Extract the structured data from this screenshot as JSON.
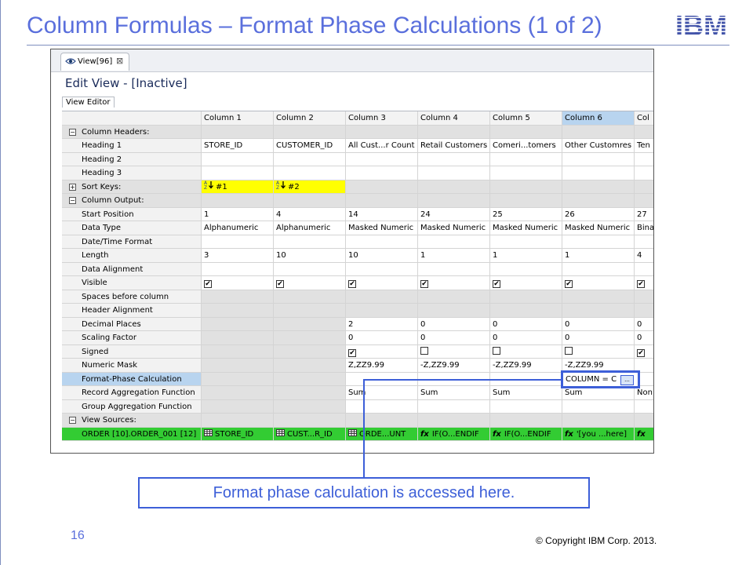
{
  "slide": {
    "title": "Column Formulas – Format Phase Calculations (1 of 2)",
    "logo_text": "IBM",
    "callout": "Format phase calculation is accessed here.",
    "page_number": "16",
    "copyright": "© Copyright  IBM Corp. 2013."
  },
  "editor": {
    "tab_label": "View[96]",
    "tab_close": "⊠",
    "title": "Edit View - [Inactive]",
    "subtab": "View Editor"
  },
  "columns": [
    "Column 1",
    "Column 2",
    "Column 3",
    "Column 4",
    "Column 5",
    "Column 6",
    "Col"
  ],
  "rows": [
    {
      "label": "Column Headers:",
      "section": true,
      "expander": "−",
      "style": "grey",
      "cells": [
        "",
        "",
        "",
        "",
        "",
        "",
        ""
      ]
    },
    {
      "label": "Heading 1",
      "cells": [
        "STORE_ID",
        "CUSTOMER_ID",
        "All Cust...r Count",
        "Retail Customers",
        "Comeri...tomers",
        "Other Customres",
        "Ten"
      ]
    },
    {
      "label": "Heading 2",
      "cells": [
        "",
        "",
        "",
        "",
        "",
        "",
        ""
      ]
    },
    {
      "label": "Heading 3",
      "cells": [
        "",
        "",
        "",
        "",
        "",
        "",
        ""
      ]
    },
    {
      "label": "Sort Keys:",
      "section": true,
      "expander": "+",
      "style": "grey",
      "cells": [
        "#1",
        "#2",
        "",
        "",
        "",
        "",
        ""
      ],
      "sort": [
        true,
        true,
        false,
        false,
        false,
        false,
        false
      ]
    },
    {
      "label": "Column Output:",
      "section": true,
      "expander": "−",
      "style": "grey",
      "cells": [
        "",
        "",
        "",
        "",
        "",
        "",
        ""
      ]
    },
    {
      "label": "Start Position",
      "cells": [
        "1",
        "4",
        "14",
        "24",
        "25",
        "26",
        "27"
      ]
    },
    {
      "label": "Data Type",
      "cells": [
        "Alphanumeric",
        "Alphanumeric",
        "Masked Numeric",
        "Masked Numeric",
        "Masked Numeric",
        "Masked Numeric",
        "Bina"
      ]
    },
    {
      "label": "Date/Time Format",
      "cells": [
        "",
        "",
        "",
        "",
        "",
        "",
        ""
      ]
    },
    {
      "label": "Length",
      "cells": [
        "3",
        "10",
        "10",
        "1",
        "1",
        "1",
        "4"
      ]
    },
    {
      "label": "Data Alignment",
      "cells": [
        "",
        "",
        "",
        "",
        "",
        "",
        ""
      ]
    },
    {
      "label": "Visible",
      "checks": [
        true,
        true,
        true,
        true,
        true,
        true,
        true
      ],
      "cells": [
        "",
        "",
        "",
        "",
        "",
        "",
        ""
      ]
    },
    {
      "label": "Spaces before column",
      "greycells": true,
      "cells": [
        "",
        "",
        "",
        "",
        "",
        "",
        ""
      ]
    },
    {
      "label": "Header Alignment",
      "greycells": true,
      "cells": [
        "",
        "",
        "",
        "",
        "",
        "",
        ""
      ]
    },
    {
      "label": "Decimal Places",
      "greyfirst": 2,
      "cells": [
        "",
        "",
        "2",
        "0",
        "0",
        "0",
        "0"
      ]
    },
    {
      "label": "Scaling Factor",
      "greyfirst": 2,
      "cells": [
        "",
        "",
        "0",
        "0",
        "0",
        "0",
        "0"
      ]
    },
    {
      "label": "Signed",
      "greyfirst": 2,
      "signed": [
        null,
        null,
        true,
        false,
        false,
        false,
        true
      ],
      "cells": [
        "",
        "",
        "",
        "",
        "",
        "",
        ""
      ]
    },
    {
      "label": "Numeric Mask",
      "greyfirst": 2,
      "cells": [
        "",
        "",
        "Z,ZZ9.99",
        "-Z,ZZ9.99",
        "-Z,ZZ9.99",
        "-Z,ZZ9.99",
        ""
      ]
    },
    {
      "label": "Format-Phase Calculation",
      "labelstyle": "blue",
      "greyfirst": 2,
      "cells": [
        "",
        "",
        "",
        "",
        "",
        "",
        ""
      ]
    },
    {
      "label": "Record Aggregation Function",
      "greyfirst": 2,
      "cells": [
        "",
        "",
        "Sum",
        "Sum",
        "Sum",
        "Sum",
        "Non"
      ]
    },
    {
      "label": "Group Aggregation Function",
      "greyfirst": 2,
      "cells": [
        "",
        "",
        "",
        "",
        "",
        "",
        ""
      ]
    },
    {
      "label": "View Sources:",
      "section": true,
      "expander": "−",
      "style": "grey",
      "cells": [
        "",
        "",
        "",
        "",
        "",
        "",
        ""
      ]
    },
    {
      "label": "ORDER [10].ORDER_001 [12]",
      "labelstyle": "green",
      "style": "green",
      "cells": [
        "STORE_ID",
        "CUST...R_ID",
        "ORDE...UNT",
        "IF(O...ENDIF",
        "IF(O...ENDIF",
        "'[you ...here]",
        ""
      ],
      "srcicons": [
        "table",
        "table",
        "table",
        "fx",
        "fx",
        "fx",
        "fx"
      ]
    }
  ],
  "formula_box": {
    "text": "COLUMN =  C",
    "button": "..."
  },
  "colors": {
    "accent": "#5a6fdc",
    "callout_blue": "#3d5fd8",
    "sort_yellow": "#ffff00",
    "source_green": "#33cc33",
    "selected_blue": "#b8d4ef"
  }
}
